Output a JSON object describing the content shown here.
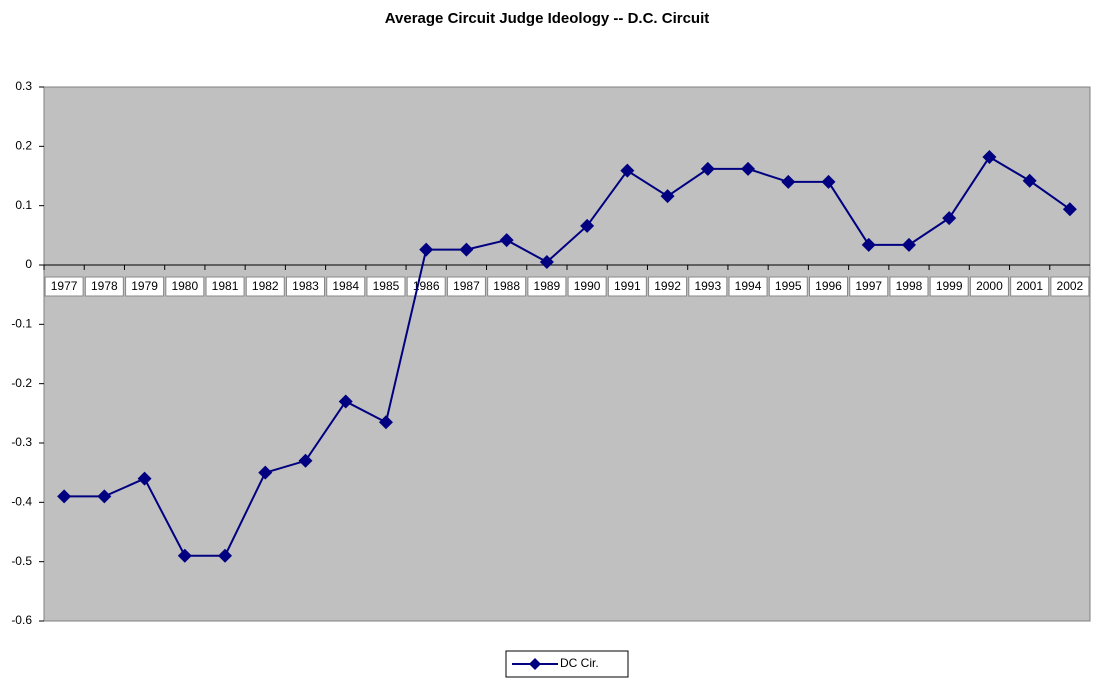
{
  "chart_data": {
    "type": "line",
    "title": "Average Circuit Judge Ideology -- D.C. Circuit",
    "categories": [
      "1977",
      "1978",
      "1979",
      "1980",
      "1981",
      "1982",
      "1983",
      "1984",
      "1985",
      "1986",
      "1987",
      "1988",
      "1989",
      "1990",
      "1991",
      "1992",
      "1993",
      "1994",
      "1995",
      "1996",
      "1997",
      "1998",
      "1999",
      "2000",
      "2001",
      "2002"
    ],
    "series": [
      {
        "name": "DC Cir.",
        "color": "#000080",
        "values": [
          -0.39,
          -0.39,
          -0.36,
          -0.49,
          -0.49,
          -0.35,
          -0.33,
          -0.23,
          -0.265,
          0.026,
          0.026,
          0.042,
          0.005,
          0.066,
          0.159,
          0.116,
          0.162,
          0.162,
          0.14,
          0.14,
          0.034,
          0.034,
          0.079,
          0.182,
          0.142,
          0.094
        ]
      }
    ],
    "ylim": [
      -0.6,
      0.3
    ],
    "yticks": [
      -0.6,
      -0.5,
      -0.4,
      -0.3,
      -0.2,
      -0.1,
      0,
      0.1,
      0.2,
      0.3
    ],
    "plot_background": "#c0c0c0",
    "legend": "bottom"
  }
}
